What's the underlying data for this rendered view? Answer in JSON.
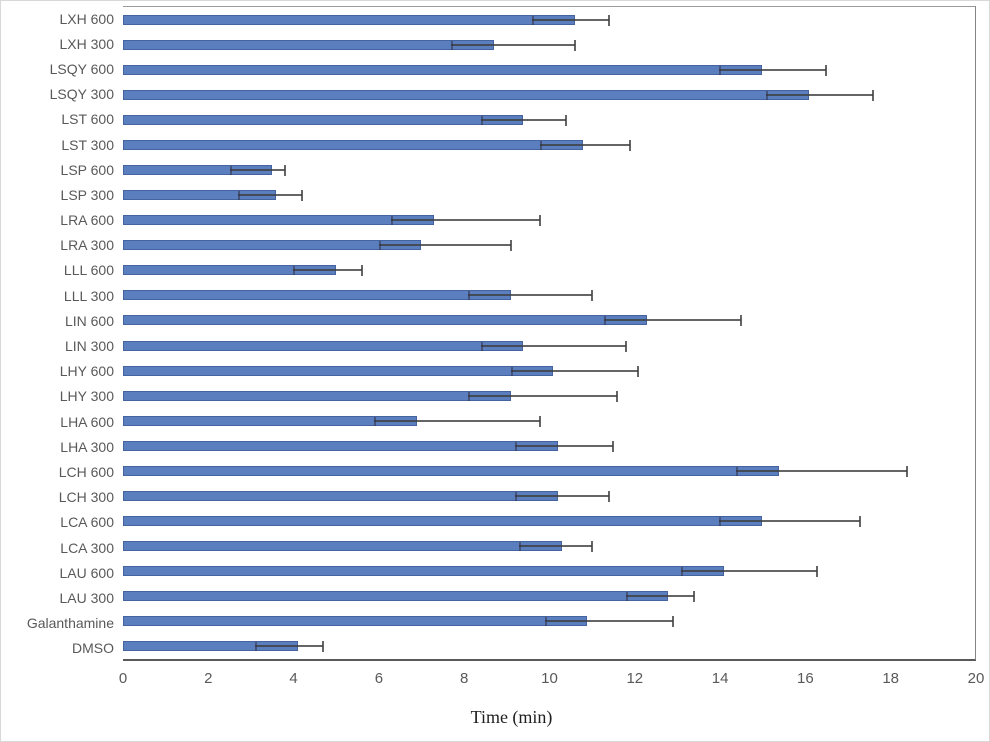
{
  "colors": {
    "bar_fill": "#5b7fbe",
    "bar_border": "#44639f",
    "error_bar": "#3e3e3e",
    "axis_line": "#595959",
    "plot_border": "#9a9a9a",
    "tick_text": "#595959",
    "category_text": "#595959",
    "title_text": "#1f1f1f",
    "background": "#ffffff"
  },
  "chart_data": {
    "type": "bar",
    "orientation": "horizontal",
    "title": "",
    "xlabel": "Time (min)",
    "ylabel": "",
    "xlim": [
      0,
      20
    ],
    "x_ticks": [
      0,
      2,
      4,
      6,
      8,
      10,
      12,
      14,
      16,
      18,
      20
    ],
    "grid": false,
    "legend_position": "none",
    "categories": [
      "LXH 600",
      "LXH 300",
      "LSQY 600",
      "LSQY 300",
      "LST 600",
      "LST 300",
      "LSP 600",
      "LSP 300",
      "LRA 600",
      "LRA 300",
      "LLL 600",
      "LLL 300",
      "LIN 600",
      "LIN 300",
      "LHY 600",
      "LHY 300",
      "LHA 600",
      "LHA 300",
      "LCH 600",
      "LCH 300",
      "LCA 600",
      "LCA 300",
      "LAU 600",
      "LAU 300",
      "Galanthamine",
      "DMSO"
    ],
    "values": [
      10.6,
      8.7,
      15.0,
      16.1,
      9.4,
      10.8,
      3.5,
      3.6,
      7.3,
      7.0,
      5.0,
      9.1,
      12.3,
      9.4,
      10.1,
      9.1,
      6.9,
      10.2,
      15.4,
      10.2,
      15.0,
      10.3,
      14.1,
      12.8,
      10.9,
      4.1
    ],
    "error_low": [
      9.6,
      7.7,
      14.0,
      15.1,
      8.4,
      9.8,
      2.5,
      2.7,
      6.3,
      6.0,
      4.0,
      8.1,
      11.3,
      8.4,
      9.1,
      8.1,
      5.9,
      9.2,
      14.4,
      9.2,
      14.0,
      9.3,
      13.1,
      11.8,
      9.9,
      3.1
    ],
    "error_high": [
      11.4,
      10.6,
      16.5,
      17.6,
      10.4,
      11.9,
      3.8,
      4.2,
      9.8,
      9.1,
      5.6,
      11.0,
      14.5,
      11.8,
      12.1,
      11.6,
      9.8,
      11.5,
      18.4,
      11.4,
      17.3,
      11.0,
      16.3,
      13.4,
      12.9,
      4.7
    ]
  }
}
